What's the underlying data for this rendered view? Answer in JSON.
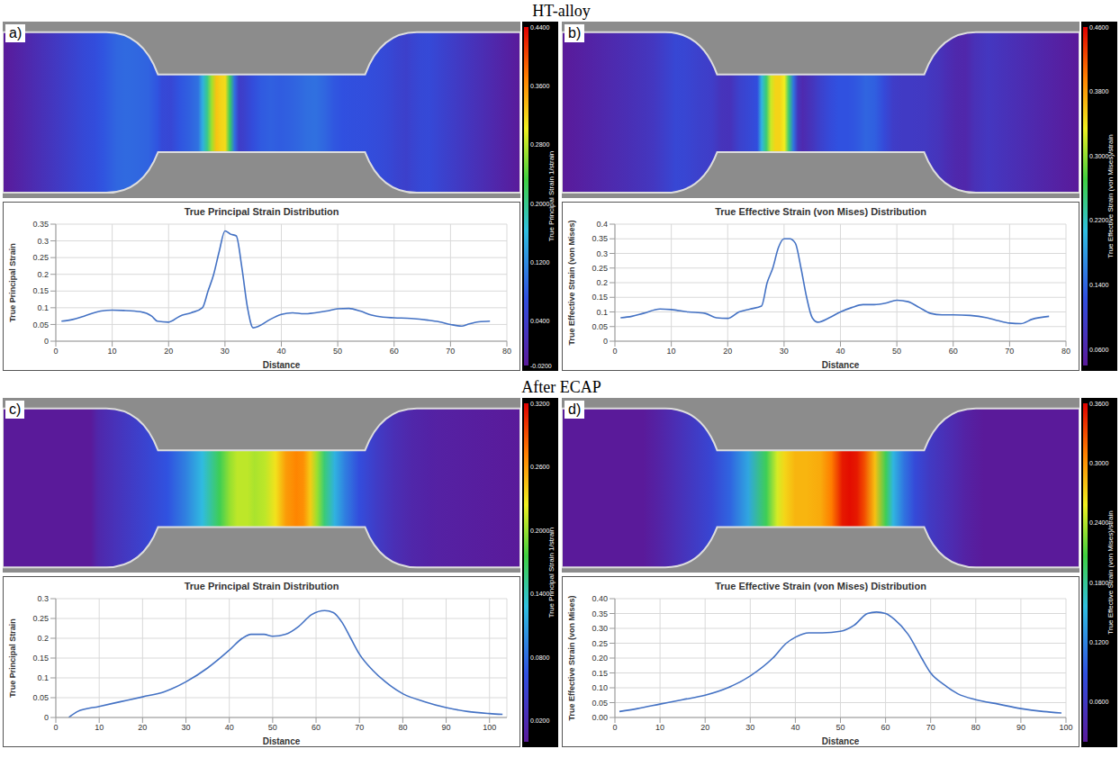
{
  "headings": [
    "HT-alloy",
    "After ECAP"
  ],
  "chart_data": [
    {
      "type": "line",
      "panel": "a)",
      "title": "True Principal Strain Distribution",
      "x_label": "Distance",
      "y_label": "True Principal Strain",
      "color": "#4472c4",
      "grid": true,
      "x": [
        1,
        3,
        5,
        8,
        10,
        12,
        15,
        17,
        18,
        20,
        22,
        24,
        26,
        27,
        28,
        29,
        30,
        31,
        32,
        33,
        34,
        35,
        36,
        38,
        40,
        42,
        44,
        46,
        48,
        50,
        52,
        54,
        56,
        58,
        60,
        63,
        66,
        68,
        70,
        72,
        73,
        75,
        77
      ],
      "values": [
        0.06,
        0.065,
        0.075,
        0.09,
        0.093,
        0.092,
        0.088,
        0.075,
        0.06,
        0.057,
        0.075,
        0.085,
        0.1,
        0.15,
        0.2,
        0.27,
        0.33,
        0.32,
        0.315,
        0.22,
        0.1,
        0.04,
        0.045,
        0.065,
        0.08,
        0.085,
        0.082,
        0.085,
        0.09,
        0.097,
        0.098,
        0.09,
        0.078,
        0.072,
        0.07,
        0.068,
        0.063,
        0.058,
        0.05,
        0.045,
        0.05,
        0.058,
        0.06
      ],
      "xlim": [
        0,
        80
      ],
      "xticks": [
        0,
        10,
        20,
        30,
        40,
        50,
        60,
        70,
        80
      ],
      "ylim": [
        0,
        0.35
      ],
      "yticks": [
        0,
        0.05,
        0.1,
        0.15,
        0.2,
        0.25,
        0.3,
        0.35
      ],
      "colorbar": {
        "label": "True Principal Strain 1/strain",
        "range": [
          -0.02,
          0.44
        ],
        "ticks": [
          {
            "value": 0.44,
            "label": "0.4400"
          },
          {
            "value": 0.36,
            "label": "0.3600"
          },
          {
            "value": 0.28,
            "label": "0.2800"
          },
          {
            "value": 0.2,
            "label": "0.2000"
          },
          {
            "value": 0.12,
            "label": "0.1200"
          },
          {
            "value": 0.04,
            "label": "0.0400"
          },
          {
            "value": -0.02,
            "label": "-0.0200"
          }
        ]
      }
    },
    {
      "type": "line",
      "panel": "b)",
      "title": "True Effective Strain (von Mises) Distribution",
      "x_label": "Distance",
      "y_label": "True Effective Strain (von Mises)",
      "color": "#4472c4",
      "grid": true,
      "x": [
        1,
        3,
        5,
        8,
        10,
        13,
        16,
        18,
        20,
        22,
        24,
        26,
        27,
        28,
        29,
        30,
        31,
        32,
        33,
        34,
        35,
        36,
        38,
        40,
        42,
        44,
        46,
        48,
        50,
        52,
        54,
        56,
        58,
        60,
        63,
        66,
        68,
        70,
        72,
        74,
        77
      ],
      "values": [
        0.08,
        0.085,
        0.095,
        0.11,
        0.108,
        0.1,
        0.095,
        0.08,
        0.078,
        0.1,
        0.11,
        0.12,
        0.2,
        0.25,
        0.32,
        0.35,
        0.35,
        0.335,
        0.25,
        0.15,
        0.08,
        0.065,
        0.08,
        0.1,
        0.115,
        0.125,
        0.125,
        0.13,
        0.14,
        0.135,
        0.115,
        0.095,
        0.09,
        0.09,
        0.088,
        0.08,
        0.07,
        0.062,
        0.06,
        0.075,
        0.085
      ],
      "xlim": [
        0,
        80
      ],
      "xticks": [
        0,
        10,
        20,
        30,
        40,
        50,
        60,
        70,
        80
      ],
      "ylim": [
        0,
        0.4
      ],
      "yticks": [
        0,
        0.05,
        0.1,
        0.15,
        0.2,
        0.25,
        0.3,
        0.35,
        0.4
      ],
      "colorbar": {
        "label": "True Effective Strain (von Mises)/strain",
        "range": [
          0.04,
          0.46
        ],
        "ticks": [
          {
            "value": 0.46,
            "label": "0.4600"
          },
          {
            "value": 0.38,
            "label": "0.3800"
          },
          {
            "value": 0.3,
            "label": "0.3000"
          },
          {
            "value": 0.22,
            "label": "0.2200"
          },
          {
            "value": 0.14,
            "label": "0.1400"
          },
          {
            "value": 0.06,
            "label": "0.0600"
          }
        ]
      }
    },
    {
      "type": "line",
      "panel": "c)",
      "title": "True Principal Strain Distribution",
      "x_label": "Distance",
      "y_label": "True Principal Strain",
      "color": "#4472c4",
      "grid": true,
      "x": [
        3,
        5,
        10,
        15,
        20,
        25,
        30,
        35,
        40,
        43,
        45,
        48,
        50,
        53,
        56,
        59,
        62,
        64,
        66,
        68,
        70,
        73,
        76,
        80,
        85,
        90,
        95,
        100,
        103
      ],
      "values": [
        0,
        0.015,
        0.028,
        0.04,
        0.052,
        0.065,
        0.09,
        0.125,
        0.17,
        0.2,
        0.21,
        0.21,
        0.205,
        0.21,
        0.23,
        0.26,
        0.27,
        0.265,
        0.24,
        0.2,
        0.16,
        0.12,
        0.09,
        0.06,
        0.04,
        0.025,
        0.015,
        0.01,
        0.008
      ],
      "xlim": [
        0,
        104
      ],
      "xticks": [
        0,
        10,
        20,
        30,
        40,
        50,
        60,
        70,
        80,
        90,
        100
      ],
      "ylim": [
        0,
        0.3
      ],
      "yticks": [
        0,
        0.05,
        0.1,
        0.15,
        0.2,
        0.25,
        0.3
      ],
      "colorbar": {
        "label": "True Principal Strain 1/strain",
        "range": [
          0,
          0.32
        ],
        "ticks": [
          {
            "value": 0.32,
            "label": "0.3200"
          },
          {
            "value": 0.26,
            "label": "0.2600"
          },
          {
            "value": 0.2,
            "label": "0.2000"
          },
          {
            "value": 0.14,
            "label": "0.1400"
          },
          {
            "value": 0.08,
            "label": "0.0800"
          },
          {
            "value": 0.02,
            "label": "0.0200"
          }
        ]
      }
    },
    {
      "type": "line",
      "panel": "d)",
      "title": "True Effective Strain (von Mises) Distribution",
      "x_label": "Distance",
      "y_label": "True Effective Strain (von Mises)",
      "color": "#4472c4",
      "grid": true,
      "x": [
        1,
        5,
        10,
        15,
        20,
        25,
        30,
        35,
        38,
        40,
        43,
        46,
        50,
        53,
        56,
        58,
        60,
        62,
        65,
        68,
        70,
        73,
        76,
        80,
        85,
        90,
        95,
        99
      ],
      "values": [
        0.02,
        0.03,
        0.045,
        0.06,
        0.075,
        0.1,
        0.14,
        0.2,
        0.25,
        0.27,
        0.285,
        0.285,
        0.29,
        0.31,
        0.35,
        0.355,
        0.35,
        0.33,
        0.28,
        0.2,
        0.15,
        0.11,
        0.08,
        0.06,
        0.045,
        0.03,
        0.02,
        0.015
      ],
      "xlim": [
        0,
        100
      ],
      "xticks": [
        0,
        10,
        20,
        30,
        40,
        50,
        60,
        70,
        80,
        90,
        100
      ],
      "ylim": [
        0,
        0.4
      ],
      "yticks": [
        {
          "value": 0,
          "label": "0.00"
        },
        {
          "value": 0.05,
          "label": "0.05"
        },
        {
          "value": 0.1,
          "label": "0.10"
        },
        {
          "value": 0.15,
          "label": "0.15"
        },
        {
          "value": 0.2,
          "label": "0.20"
        },
        {
          "value": 0.25,
          "label": "0.25"
        },
        {
          "value": 0.3,
          "label": "0.30"
        },
        {
          "value": 0.35,
          "label": "0.35"
        },
        {
          "value": 0.4,
          "label": "0.40"
        }
      ],
      "colorbar": {
        "label": "True Effective Strain (von Mises)/strain",
        "range": [
          0.02,
          0.36
        ],
        "ticks": [
          {
            "value": 0.36,
            "label": "0.3600"
          },
          {
            "value": 0.3,
            "label": "0.3000"
          },
          {
            "value": 0.24,
            "label": "0.2400"
          },
          {
            "value": 0.18,
            "label": "0.1800"
          },
          {
            "value": 0.12,
            "label": "0.1200"
          },
          {
            "value": 0.06,
            "label": "0.0600"
          }
        ]
      }
    }
  ]
}
